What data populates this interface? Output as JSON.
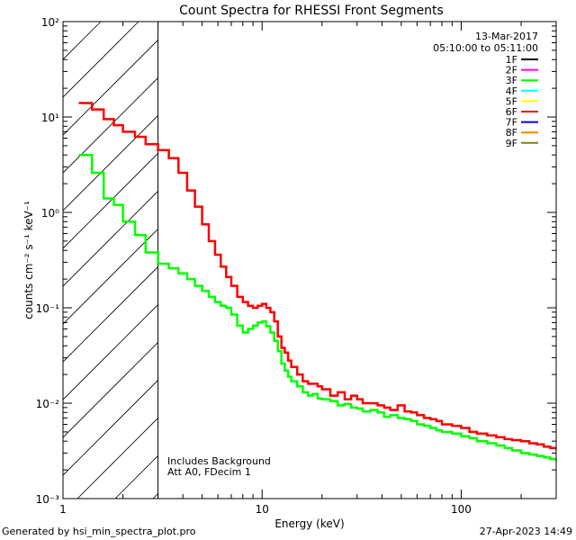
{
  "chart_data": {
    "type": "line",
    "title": "Count Spectra for RHESSI Front Segments",
    "xlabel": "Energy (keV)",
    "ylabel": "counts cm⁻² s⁻¹ keV⁻¹",
    "xscale": "log",
    "yscale": "log",
    "xlim": [
      1,
      300
    ],
    "ylim": [
      0.001,
      100
    ],
    "x_ticks": [
      {
        "value": 1,
        "label": "1"
      },
      {
        "value": 10,
        "label": "10"
      },
      {
        "value": 100,
        "label": "100"
      }
    ],
    "y_ticks": [
      {
        "value": 0.001,
        "label": "10⁻³"
      },
      {
        "value": 0.01,
        "label": "10⁻²"
      },
      {
        "value": 0.1,
        "label": "10⁻¹"
      },
      {
        "value": 1,
        "label": "10⁰"
      },
      {
        "value": 10,
        "label": "10¹"
      },
      {
        "value": 100,
        "label": "10²"
      }
    ],
    "date": "13-Mar-2017",
    "time_range": "05:10:00 to 05:11:00",
    "legend": [
      {
        "label": "1F",
        "color": "#000000"
      },
      {
        "label": "2F",
        "color": "#ff00ff"
      },
      {
        "label": "3F",
        "color": "#00ff00"
      },
      {
        "label": "4F",
        "color": "#00ffff"
      },
      {
        "label": "5F",
        "color": "#ffff00"
      },
      {
        "label": "6F",
        "color": "#ff0000"
      },
      {
        "label": "7F",
        "color": "#0000ff"
      },
      {
        "label": "8F",
        "color": "#ff8000"
      },
      {
        "label": "9F",
        "color": "#808000"
      }
    ],
    "hatched_region_max_energy": 3,
    "annotations": [
      "Includes Background",
      "Att A0, FDecim 1"
    ],
    "series": [
      {
        "name": "6F",
        "color": "#ff0000",
        "x": [
          1.2,
          1.4,
          1.6,
          1.8,
          2.0,
          2.3,
          2.6,
          3.0,
          3.4,
          3.8,
          4.2,
          4.6,
          5.0,
          5.4,
          5.8,
          6.2,
          6.6,
          7.0,
          7.5,
          8.0,
          8.5,
          9.0,
          9.5,
          10.0,
          10.5,
          11.0,
          11.5,
          12.0,
          12.5,
          13.0,
          13.5,
          14.0,
          15.0,
          16.0,
          17.0,
          18.0,
          19.0,
          20.0,
          22.0,
          24.0,
          26.0,
          28.0,
          30.0,
          32.0,
          35.0,
          38.0,
          41.0,
          44.0,
          48.0,
          52.0,
          56.0,
          60.0,
          65.0,
          70.0,
          75.0,
          80.0,
          90.0,
          100.0,
          110.0,
          120.0,
          135.0,
          150.0,
          165.0,
          180.0,
          200.0,
          220.0,
          240.0,
          260.0,
          280.0,
          300.0
        ],
        "values": [
          14,
          12,
          9.5,
          8.2,
          7.0,
          6.2,
          5.2,
          4.5,
          3.7,
          2.6,
          1.7,
          1.15,
          0.75,
          0.5,
          0.36,
          0.27,
          0.21,
          0.17,
          0.13,
          0.115,
          0.105,
          0.1,
          0.105,
          0.11,
          0.1,
          0.09,
          0.072,
          0.05,
          0.038,
          0.034,
          0.028,
          0.024,
          0.02,
          0.017,
          0.016,
          0.016,
          0.015,
          0.014,
          0.012,
          0.013,
          0.011,
          0.012,
          0.011,
          0.01,
          0.01,
          0.0095,
          0.009,
          0.0085,
          0.0095,
          0.0082,
          0.008,
          0.0075,
          0.007,
          0.0068,
          0.0065,
          0.006,
          0.0058,
          0.0055,
          0.005,
          0.0048,
          0.0046,
          0.0044,
          0.0042,
          0.0041,
          0.004,
          0.0038,
          0.0037,
          0.0035,
          0.0034,
          0.0033
        ]
      },
      {
        "name": "3F",
        "color": "#00ff00",
        "x": [
          1.2,
          1.4,
          1.6,
          1.8,
          2.0,
          2.3,
          2.6,
          3.0,
          3.4,
          3.8,
          4.2,
          4.6,
          5.0,
          5.4,
          5.8,
          6.2,
          6.6,
          7.0,
          7.5,
          8.0,
          8.5,
          9.0,
          9.5,
          10.0,
          10.5,
          11.0,
          11.5,
          12.0,
          12.5,
          13.0,
          13.5,
          14.0,
          15.0,
          16.0,
          17.0,
          18.0,
          19.0,
          20.0,
          22.0,
          24.0,
          26.0,
          28.0,
          30.0,
          32.0,
          35.0,
          38.0,
          41.0,
          44.0,
          48.0,
          52.0,
          56.0,
          60.0,
          65.0,
          70.0,
          75.0,
          80.0,
          90.0,
          100.0,
          110.0,
          120.0,
          135.0,
          150.0,
          165.0,
          180.0,
          200.0,
          220.0,
          240.0,
          260.0,
          280.0,
          300.0
        ],
        "values": [
          4.0,
          2.6,
          1.4,
          1.2,
          0.8,
          0.58,
          0.38,
          0.29,
          0.26,
          0.23,
          0.2,
          0.17,
          0.15,
          0.13,
          0.115,
          0.105,
          0.1,
          0.085,
          0.065,
          0.055,
          0.06,
          0.065,
          0.07,
          0.072,
          0.064,
          0.055,
          0.045,
          0.035,
          0.026,
          0.022,
          0.019,
          0.017,
          0.015,
          0.013,
          0.012,
          0.0125,
          0.0112,
          0.011,
          0.0105,
          0.0095,
          0.0098,
          0.009,
          0.0088,
          0.0082,
          0.0085,
          0.008,
          0.0072,
          0.0075,
          0.007,
          0.0068,
          0.0065,
          0.006,
          0.0058,
          0.0055,
          0.0052,
          0.005,
          0.0048,
          0.0045,
          0.0043,
          0.004,
          0.0038,
          0.0036,
          0.0034,
          0.0032,
          0.003,
          0.0029,
          0.0028,
          0.0027,
          0.0026,
          0.0025
        ]
      }
    ]
  },
  "footer": {
    "left": "Generated by hsi_min_spectra_plot.pro",
    "right": "27-Apr-2023 14:49"
  }
}
